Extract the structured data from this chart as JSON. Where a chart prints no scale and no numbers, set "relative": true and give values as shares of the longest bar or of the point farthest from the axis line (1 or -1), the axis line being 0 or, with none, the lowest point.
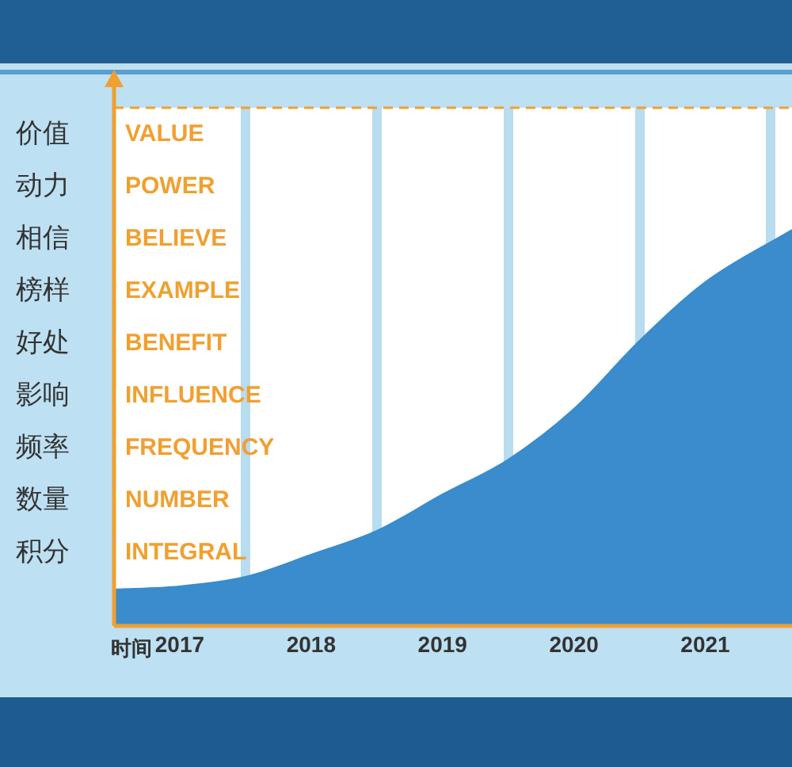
{
  "chart_data": {
    "type": "area",
    "xlabel": "时间",
    "relative": true,
    "x": [
      2016.5,
      2017,
      2017.5,
      2018,
      2018.5,
      2019,
      2019.5,
      2020,
      2020.5,
      2021,
      2021.66
    ],
    "series": [
      {
        "color": "#3a8ccc",
        "values": [
          0.092,
          0.1,
          0.124,
          0.18,
          0.24,
          0.332,
          0.42,
          0.548,
          0.72,
          0.868,
          1
        ]
      }
    ],
    "xlim": [
      2016.5,
      2021.66
    ],
    "xticks": [
      2017,
      {
        "value": 2017.5,
        "label": null
      },
      2018,
      {
        "value": 2018.5,
        "label": null
      },
      2019,
      {
        "value": 2019.5,
        "label": null
      },
      2020,
      {
        "value": 2020.5,
        "label": null
      },
      2021,
      {
        "value": 2021.5,
        "label": null
      }
    ],
    "annotations": [
      "价值",
      "VALUE",
      "动力",
      "POWER",
      "相信",
      "BELIEVE",
      "榜样",
      "EXAMPLE",
      "好处",
      "BENEFIT",
      "影响",
      "INFLUENCE",
      "频率",
      "FREQUENCY",
      "数量",
      "NUMBER",
      "积分",
      "INTEGRAL"
    ],
    "grid": "x"
  }
}
